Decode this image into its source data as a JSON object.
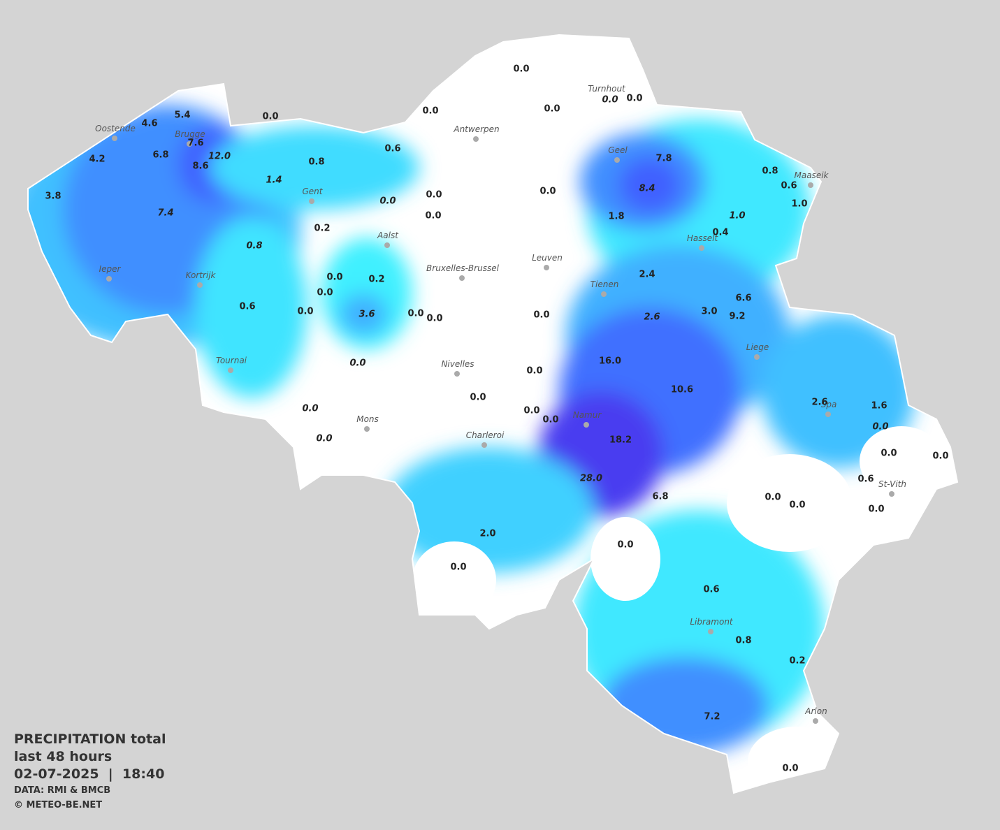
{
  "legend": {
    "title": "PRECIPITATION total",
    "period": "last 48 hours",
    "datetime": "02-07-2025  |  18:40",
    "source": "DATA: RMI & BMCB",
    "copyright": "© METEO-BE.NET"
  },
  "cities": [
    "Turnhout",
    "Oostende",
    "Brugge",
    "Antwerpen",
    "Geel",
    "Maaseik",
    "Gent",
    "Aalst",
    "Hasselt",
    "Leuven",
    "Bruxelles-Brussel",
    "Ieper",
    "Kortrijk",
    "Tienen",
    "Liege",
    "Tournai",
    "Nivelles",
    "Spa",
    "Namur",
    "Mons",
    "Charleroi",
    "St-Vith",
    "Libramont",
    "Arlon"
  ],
  "readings": [
    "0.0",
    "0.0",
    "0.0",
    "0.0",
    "0.0",
    "0.0",
    "5.4",
    "4.6",
    "7.6",
    "12.0",
    "8.6",
    "6.8",
    "4.2",
    "3.8",
    "7.4",
    "1.4",
    "0.8",
    "0.6",
    "0.0",
    "0.0",
    "0.0",
    "0.0",
    "0.2",
    "0.8",
    "7.8",
    "8.4",
    "0.8",
    "0.6",
    "1.0",
    "1.0",
    "0.4",
    "1.8",
    "2.4",
    "0.0",
    "0.2",
    "0.0",
    "0.0",
    "3.6",
    "0.0",
    "0.0",
    "0.0",
    "0.6",
    "6.6",
    "3.0",
    "9.2",
    "2.6",
    "16.0",
    "0.0",
    "0.0",
    "10.6",
    "0.0",
    "0.0",
    "0.0",
    "0.0",
    "2.6",
    "1.6",
    "0.0",
    "0.0",
    "18.2",
    "0.0",
    "0.0",
    "28.0",
    "0.6",
    "6.8",
    "0.0",
    "0.0",
    "0.0",
    "2.0",
    "0.0",
    "0.0",
    "0.6",
    "0.8",
    "0.2",
    "7.2",
    "0.0"
  ]
}
